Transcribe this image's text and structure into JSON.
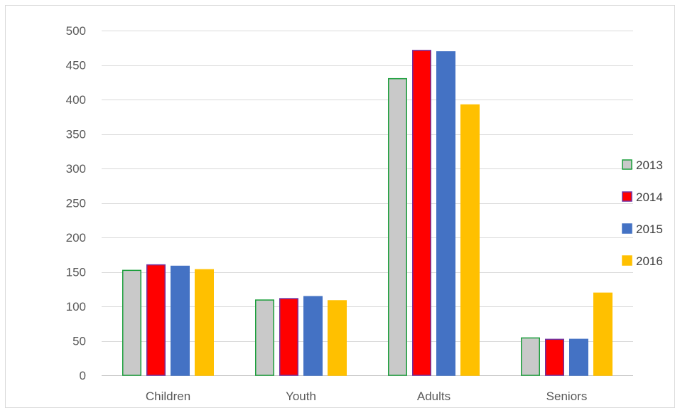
{
  "chart_data": {
    "type": "bar",
    "categories": [
      "Children",
      "Youth",
      "Adults",
      "Seniors"
    ],
    "series": [
      {
        "name": "2013",
        "values": [
          153,
          110,
          431,
          55
        ],
        "fill": "#c9c9c9",
        "stroke": "#1a9e3a"
      },
      {
        "name": "2014",
        "values": [
          161,
          112,
          472,
          53
        ],
        "fill": "#ff0000",
        "stroke": "#7030a0"
      },
      {
        "name": "2015",
        "values": [
          159,
          115,
          470,
          53
        ],
        "fill": "#4472c4",
        "stroke": "#4472c4"
      },
      {
        "name": "2016",
        "values": [
          154,
          109,
          393,
          120
        ],
        "fill": "#ffc000",
        "stroke": "#ffc000"
      }
    ],
    "yticks": [
      0,
      50,
      100,
      150,
      200,
      250,
      300,
      350,
      400,
      450,
      500
    ],
    "ylim": [
      0,
      500
    ],
    "grid": true,
    "legend_position": "right",
    "title": "",
    "xlabel": "",
    "ylabel": ""
  }
}
